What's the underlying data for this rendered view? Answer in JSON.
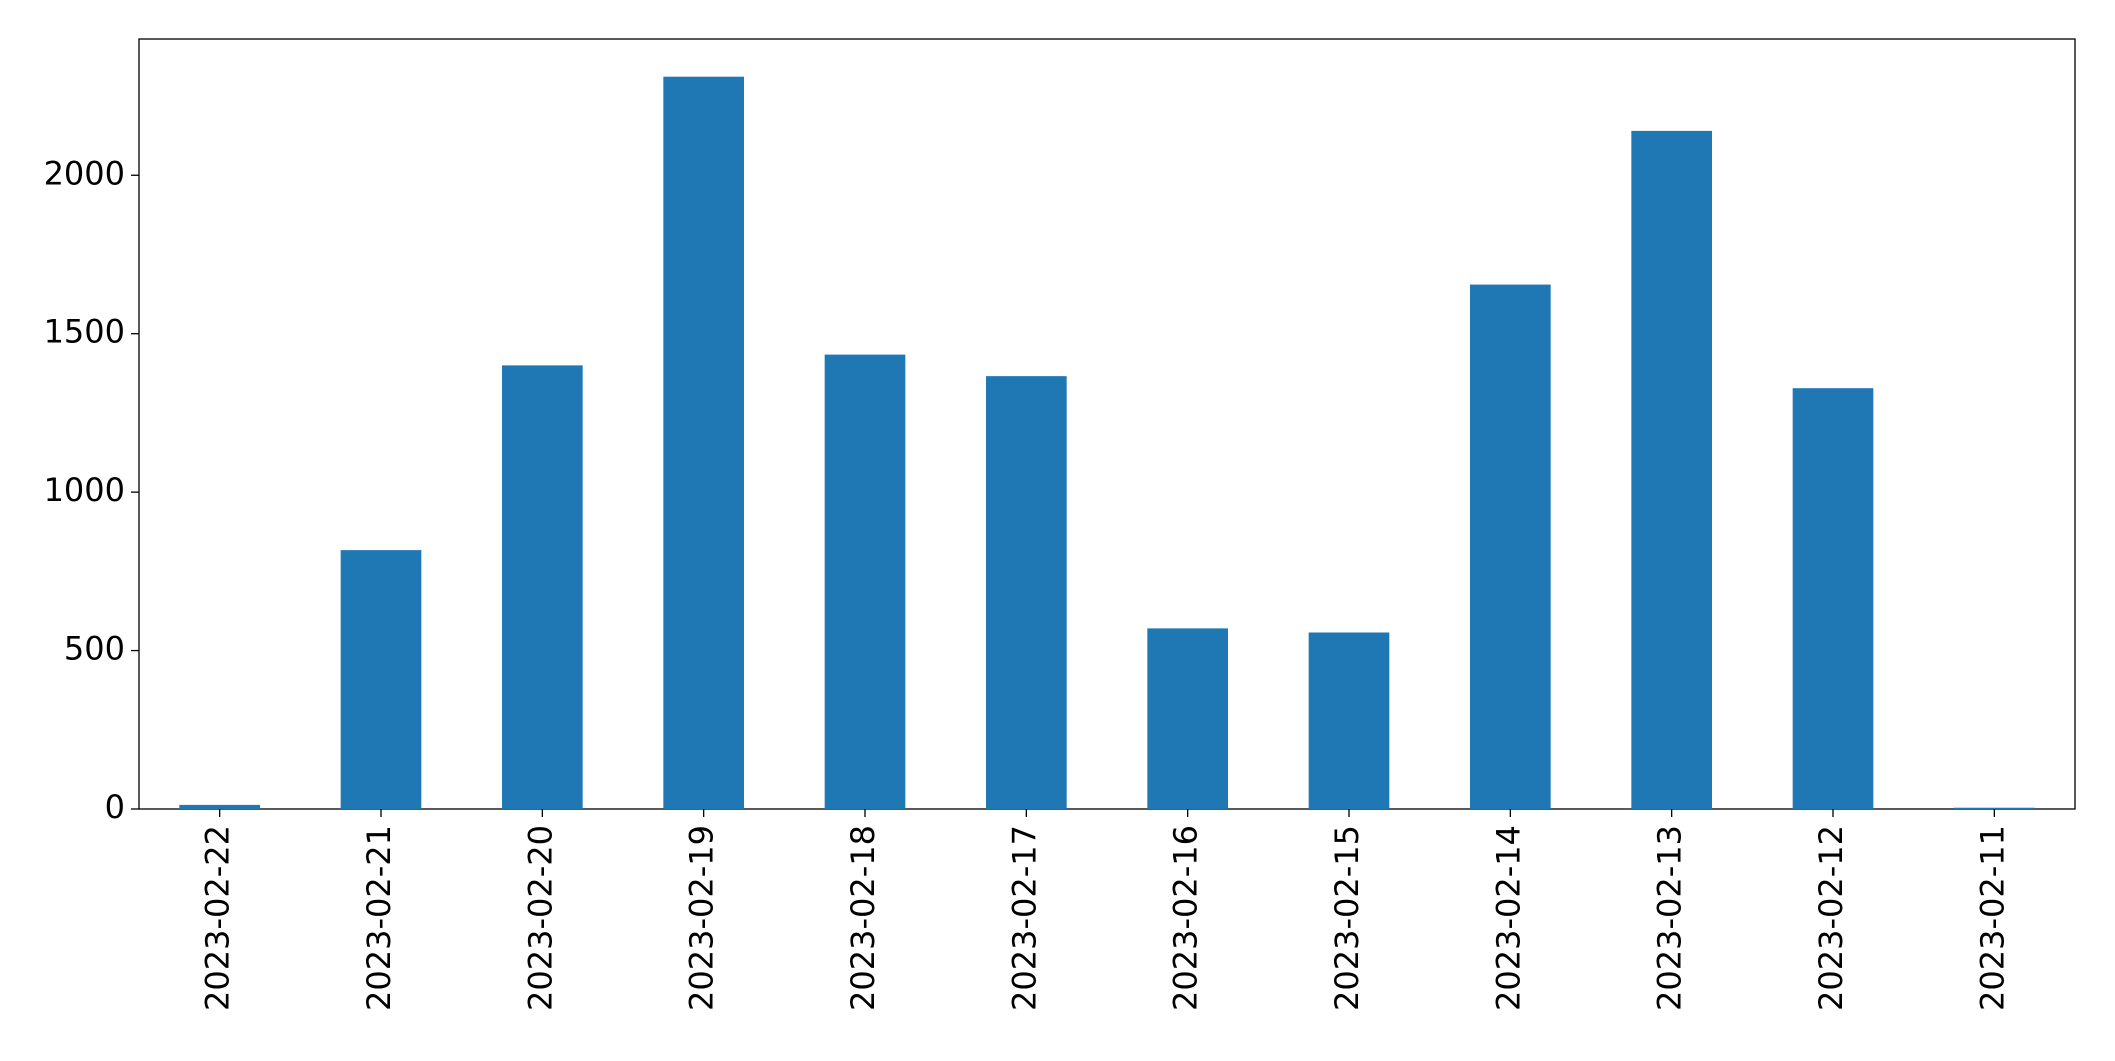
{
  "chart_data": {
    "type": "bar",
    "categories": [
      "2023-02-22",
      "2023-02-21",
      "2023-02-20",
      "2023-02-19",
      "2023-02-18",
      "2023-02-17",
      "2023-02-16",
      "2023-02-15",
      "2023-02-14",
      "2023-02-13",
      "2023-02-12",
      "2023-02-11"
    ],
    "values": [
      13,
      817,
      1400,
      2311,
      1434,
      1366,
      570,
      557,
      1655,
      2140,
      1328,
      4
    ],
    "color": "#1f77b4",
    "ylim": [
      0,
      2430
    ],
    "yticks": [
      0,
      500,
      1000,
      1500,
      2000
    ],
    "grid": false
  }
}
